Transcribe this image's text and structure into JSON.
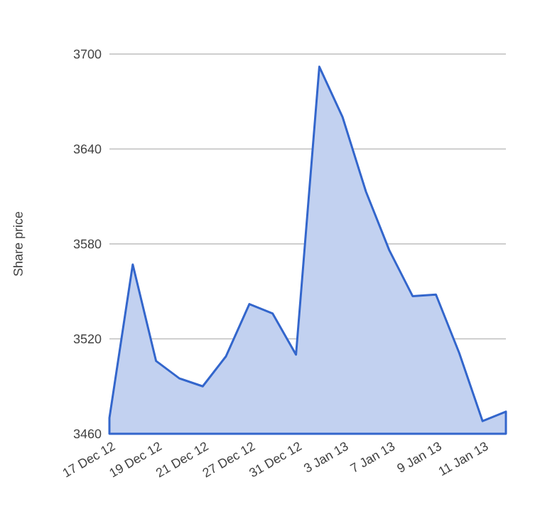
{
  "chart_data": {
    "type": "area",
    "ylabel": "Share price",
    "categories": [
      "17 Dec 12",
      null,
      "19 Dec 12",
      null,
      "21 Dec 12",
      null,
      "27 Dec 12",
      null,
      "31 Dec 12",
      null,
      "3 Jan 13",
      null,
      "7 Jan 13",
      null,
      "9 Jan 13",
      null,
      "11 Jan 13",
      null
    ],
    "series": [
      {
        "color": "#3366cc",
        "values": [
          3470,
          3567,
          3506,
          3495,
          3490,
          3509,
          3542,
          3536,
          3510,
          3692,
          3660,
          3613,
          3576,
          3547,
          3548,
          3511,
          3468,
          3474
        ]
      }
    ],
    "ylim": [
      3460,
      3700
    ],
    "yticks": [
      3460,
      3520,
      3580,
      3640,
      3700
    ],
    "grid": "y"
  }
}
